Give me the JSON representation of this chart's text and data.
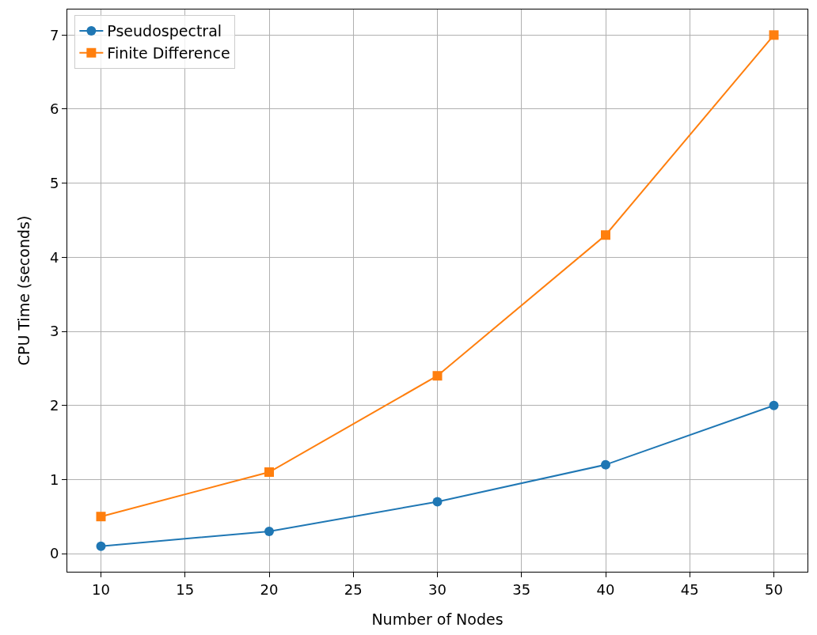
{
  "chart_data": {
    "type": "line",
    "xlabel": "Number of Nodes",
    "ylabel": "CPU Time (seconds)",
    "x": [
      10,
      20,
      30,
      40,
      50
    ],
    "series": [
      {
        "name": "Pseudospectral",
        "color": "#1f77b4",
        "marker": "circle",
        "values": [
          0.1,
          0.3,
          0.7,
          1.2,
          2.0
        ]
      },
      {
        "name": "Finite Difference",
        "color": "#ff7f0e",
        "marker": "square",
        "values": [
          0.5,
          1.1,
          2.4,
          4.3,
          7.0
        ]
      }
    ],
    "xlim": [
      8,
      52
    ],
    "xticks": [
      10,
      15,
      20,
      25,
      30,
      35,
      40,
      45,
      50
    ],
    "ylim": [
      -0.245,
      7.345
    ],
    "yticks": [
      0,
      1,
      2,
      3,
      4,
      5,
      6,
      7
    ],
    "grid": true,
    "legend": "top left",
    "line_style": "solid"
  }
}
